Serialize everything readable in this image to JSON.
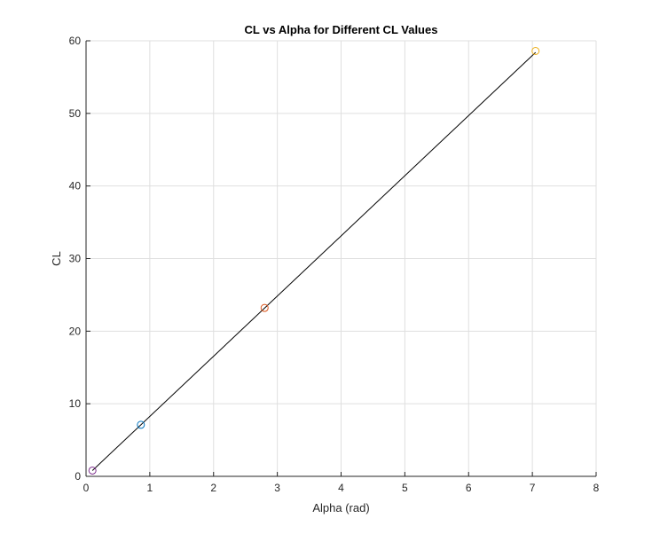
{
  "chart_data": {
    "type": "line",
    "title": "CL vs Alpha for Different CL Values",
    "xlabel": "Alpha (rad)",
    "ylabel": "CL",
    "xlim": [
      0,
      8
    ],
    "ylim": [
      0,
      60
    ],
    "xticks": [
      0,
      1,
      2,
      3,
      4,
      5,
      6,
      7,
      8
    ],
    "yticks": [
      0,
      10,
      20,
      30,
      40,
      50,
      60
    ],
    "grid": true,
    "line": {
      "color": "#000000",
      "x": [
        0.1,
        7.05
      ],
      "y": [
        0.8,
        58.4
      ]
    },
    "points": [
      {
        "x": 0.1,
        "y": 0.8,
        "color": "#7E2F8E"
      },
      {
        "x": 0.86,
        "y": 7.1,
        "color": "#0072BD"
      },
      {
        "x": 2.8,
        "y": 23.2,
        "color": "#D95319"
      },
      {
        "x": 7.05,
        "y": 58.6,
        "color": "#EDB120"
      }
    ]
  }
}
